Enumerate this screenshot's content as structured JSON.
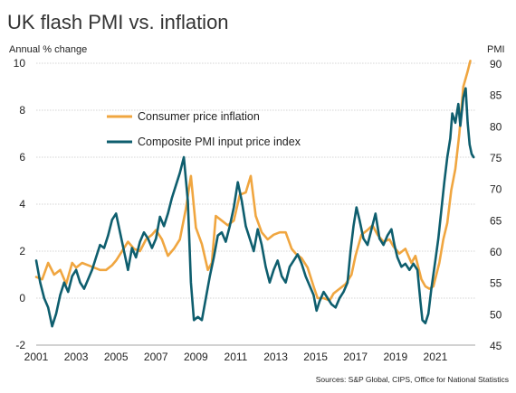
{
  "title": "UK flash PMI vs. inflation",
  "source": "Sources: S&P Global, CIPS, Office for National Statistics",
  "colors": {
    "inflation": "#F0A640",
    "pmi": "#0E5E6E",
    "grid": "#c8c8c8"
  },
  "chart_data": {
    "type": "line",
    "title": "UK flash PMI vs. inflation",
    "left_axis": {
      "label": "Annual % change",
      "range": [
        -2,
        10
      ],
      "ticks": [
        -2,
        0,
        2,
        4,
        6,
        8,
        10
      ]
    },
    "right_axis": {
      "label": "PMI",
      "range": [
        45,
        90
      ],
      "ticks": [
        45,
        50,
        55,
        60,
        65,
        70,
        75,
        80,
        85,
        90
      ]
    },
    "x_axis": {
      "range": [
        2001,
        2023
      ],
      "ticks": [
        "2001",
        "2003",
        "2005",
        "2007",
        "2009",
        "2011",
        "2013",
        "2015",
        "2017",
        "2019",
        "2021"
      ]
    },
    "grid": "horizontal",
    "legend_position": "upper-middle",
    "series": [
      {
        "name": "Consumer price inflation",
        "axis": "left",
        "color": "#F0A640",
        "points": [
          [
            2001.0,
            0.9
          ],
          [
            2001.3,
            0.8
          ],
          [
            2001.6,
            1.5
          ],
          [
            2001.9,
            1.0
          ],
          [
            2002.2,
            1.2
          ],
          [
            2002.5,
            0.6
          ],
          [
            2002.8,
            1.5
          ],
          [
            2003.0,
            1.3
          ],
          [
            2003.3,
            1.5
          ],
          [
            2003.6,
            1.4
          ],
          [
            2003.9,
            1.3
          ],
          [
            2004.2,
            1.2
          ],
          [
            2004.5,
            1.2
          ],
          [
            2004.8,
            1.4
          ],
          [
            2005.0,
            1.6
          ],
          [
            2005.3,
            2.0
          ],
          [
            2005.6,
            2.4
          ],
          [
            2005.9,
            2.1
          ],
          [
            2006.2,
            2.0
          ],
          [
            2006.5,
            2.5
          ],
          [
            2006.8,
            2.7
          ],
          [
            2007.0,
            2.9
          ],
          [
            2007.3,
            2.5
          ],
          [
            2007.6,
            1.8
          ],
          [
            2007.9,
            2.1
          ],
          [
            2008.2,
            2.5
          ],
          [
            2008.5,
            3.8
          ],
          [
            2008.75,
            5.2
          ],
          [
            2009.0,
            3.0
          ],
          [
            2009.3,
            2.3
          ],
          [
            2009.6,
            1.2
          ],
          [
            2009.8,
            1.5
          ],
          [
            2010.0,
            3.5
          ],
          [
            2010.3,
            3.3
          ],
          [
            2010.6,
            3.1
          ],
          [
            2010.9,
            3.3
          ],
          [
            2011.2,
            4.4
          ],
          [
            2011.5,
            4.5
          ],
          [
            2011.75,
            5.2
          ],
          [
            2012.0,
            3.5
          ],
          [
            2012.3,
            2.8
          ],
          [
            2012.6,
            2.5
          ],
          [
            2012.9,
            2.7
          ],
          [
            2013.2,
            2.8
          ],
          [
            2013.5,
            2.8
          ],
          [
            2013.8,
            2.1
          ],
          [
            2014.0,
            1.9
          ],
          [
            2014.3,
            1.7
          ],
          [
            2014.6,
            1.3
          ],
          [
            2014.9,
            0.5
          ],
          [
            2015.1,
            0.0
          ],
          [
            2015.4,
            0.0
          ],
          [
            2015.7,
            -0.1
          ],
          [
            2015.9,
            0.2
          ],
          [
            2016.2,
            0.4
          ],
          [
            2016.5,
            0.6
          ],
          [
            2016.8,
            1.0
          ],
          [
            2017.0,
            1.8
          ],
          [
            2017.3,
            2.7
          ],
          [
            2017.6,
            2.9
          ],
          [
            2017.85,
            3.1
          ],
          [
            2018.1,
            2.7
          ],
          [
            2018.4,
            2.4
          ],
          [
            2018.7,
            2.5
          ],
          [
            2018.9,
            2.2
          ],
          [
            2019.2,
            1.9
          ],
          [
            2019.5,
            2.1
          ],
          [
            2019.8,
            1.5
          ],
          [
            2020.0,
            1.8
          ],
          [
            2020.3,
            0.8
          ],
          [
            2020.5,
            0.5
          ],
          [
            2020.7,
            0.4
          ],
          [
            2020.9,
            0.5
          ],
          [
            2021.2,
            1.5
          ],
          [
            2021.4,
            2.5
          ],
          [
            2021.6,
            3.2
          ],
          [
            2021.8,
            4.6
          ],
          [
            2022.0,
            5.5
          ],
          [
            2022.2,
            7.0
          ],
          [
            2022.4,
            9.0
          ],
          [
            2022.6,
            9.6
          ],
          [
            2022.75,
            10.1
          ]
        ]
      },
      {
        "name": "Composite PMI input price index",
        "axis": "right",
        "color": "#0E5E6E",
        "points": [
          [
            2001.0,
            58.5
          ],
          [
            2001.2,
            55.0
          ],
          [
            2001.4,
            52.5
          ],
          [
            2001.6,
            51.0
          ],
          [
            2001.8,
            48.0
          ],
          [
            2002.0,
            50.0
          ],
          [
            2002.2,
            53.0
          ],
          [
            2002.4,
            55.0
          ],
          [
            2002.6,
            53.5
          ],
          [
            2002.8,
            56.0
          ],
          [
            2003.0,
            57.0
          ],
          [
            2003.2,
            55.0
          ],
          [
            2003.4,
            54.0
          ],
          [
            2003.6,
            55.5
          ],
          [
            2003.8,
            57.0
          ],
          [
            2004.0,
            59.0
          ],
          [
            2004.2,
            61.0
          ],
          [
            2004.4,
            60.5
          ],
          [
            2004.6,
            62.5
          ],
          [
            2004.8,
            65.0
          ],
          [
            2005.0,
            66.0
          ],
          [
            2005.2,
            63.0
          ],
          [
            2005.4,
            60.0
          ],
          [
            2005.6,
            57.0
          ],
          [
            2005.8,
            60.5
          ],
          [
            2006.0,
            59.0
          ],
          [
            2006.2,
            61.5
          ],
          [
            2006.4,
            63.0
          ],
          [
            2006.6,
            62.0
          ],
          [
            2006.8,
            60.5
          ],
          [
            2007.0,
            62.0
          ],
          [
            2007.2,
            65.5
          ],
          [
            2007.4,
            64.0
          ],
          [
            2007.6,
            66.0
          ],
          [
            2007.8,
            68.5
          ],
          [
            2008.0,
            70.5
          ],
          [
            2008.2,
            72.5
          ],
          [
            2008.4,
            75.0
          ],
          [
            2008.6,
            68.0
          ],
          [
            2008.75,
            55.0
          ],
          [
            2008.9,
            49.0
          ],
          [
            2009.1,
            49.5
          ],
          [
            2009.3,
            49.0
          ],
          [
            2009.5,
            52.5
          ],
          [
            2009.7,
            56.0
          ],
          [
            2009.9,
            59.0
          ],
          [
            2010.1,
            62.5
          ],
          [
            2010.3,
            63.0
          ],
          [
            2010.5,
            61.5
          ],
          [
            2010.7,
            64.0
          ],
          [
            2010.9,
            67.0
          ],
          [
            2011.1,
            71.0
          ],
          [
            2011.3,
            68.0
          ],
          [
            2011.5,
            64.0
          ],
          [
            2011.7,
            62.0
          ],
          [
            2011.9,
            60.0
          ],
          [
            2012.1,
            63.5
          ],
          [
            2012.3,
            61.0
          ],
          [
            2012.5,
            57.5
          ],
          [
            2012.7,
            55.0
          ],
          [
            2012.9,
            57.0
          ],
          [
            2013.1,
            58.5
          ],
          [
            2013.3,
            56.0
          ],
          [
            2013.5,
            55.0
          ],
          [
            2013.7,
            57.5
          ],
          [
            2013.9,
            58.5
          ],
          [
            2014.1,
            59.5
          ],
          [
            2014.3,
            58.0
          ],
          [
            2014.5,
            56.0
          ],
          [
            2014.7,
            54.5
          ],
          [
            2014.9,
            53.0
          ],
          [
            2015.05,
            50.5
          ],
          [
            2015.2,
            52.0
          ],
          [
            2015.4,
            53.5
          ],
          [
            2015.6,
            52.5
          ],
          [
            2015.8,
            51.5
          ],
          [
            2016.0,
            51.0
          ],
          [
            2016.2,
            52.5
          ],
          [
            2016.4,
            53.5
          ],
          [
            2016.6,
            55.0
          ],
          [
            2016.75,
            60.0
          ],
          [
            2016.9,
            64.0
          ],
          [
            2017.05,
            67.0
          ],
          [
            2017.2,
            65.0
          ],
          [
            2017.4,
            62.0
          ],
          [
            2017.6,
            61.0
          ],
          [
            2017.8,
            63.5
          ],
          [
            2018.0,
            66.0
          ],
          [
            2018.2,
            62.0
          ],
          [
            2018.4,
            61.0
          ],
          [
            2018.6,
            62.5
          ],
          [
            2018.8,
            63.5
          ],
          [
            2018.95,
            61.0
          ],
          [
            2019.1,
            59.0
          ],
          [
            2019.3,
            57.5
          ],
          [
            2019.5,
            58.0
          ],
          [
            2019.7,
            57.0
          ],
          [
            2019.9,
            58.0
          ],
          [
            2020.1,
            57.0
          ],
          [
            2020.25,
            52.0
          ],
          [
            2020.35,
            49.0
          ],
          [
            2020.5,
            48.5
          ],
          [
            2020.65,
            50.0
          ],
          [
            2020.8,
            54.0
          ],
          [
            2021.0,
            58.5
          ],
          [
            2021.15,
            62.0
          ],
          [
            2021.3,
            66.5
          ],
          [
            2021.45,
            71.0
          ],
          [
            2021.6,
            75.0
          ],
          [
            2021.75,
            78.0
          ],
          [
            2021.85,
            82.0
          ],
          [
            2022.0,
            80.5
          ],
          [
            2022.15,
            83.5
          ],
          [
            2022.25,
            80.0
          ],
          [
            2022.4,
            84.5
          ],
          [
            2022.52,
            86.0
          ],
          [
            2022.62,
            80.5
          ],
          [
            2022.72,
            77.0
          ],
          [
            2022.82,
            75.5
          ],
          [
            2022.92,
            75.0
          ]
        ]
      }
    ]
  }
}
